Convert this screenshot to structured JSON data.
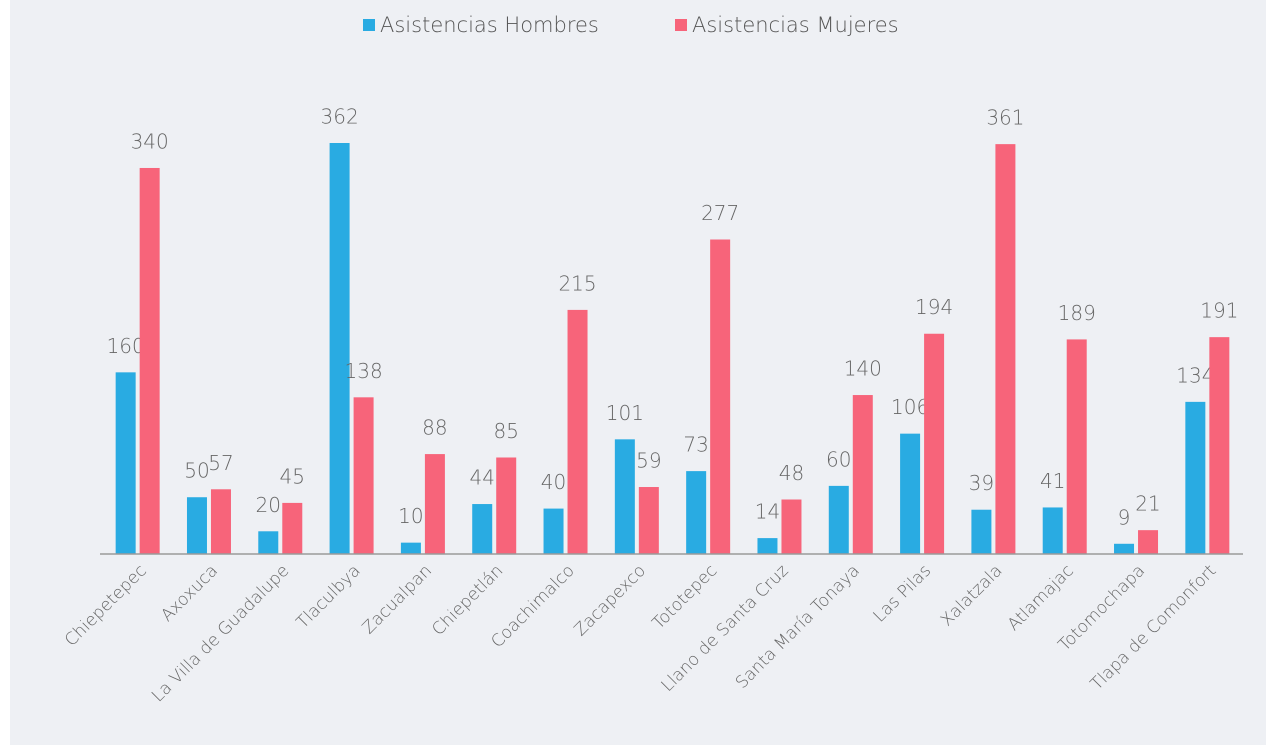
{
  "chart_data": {
    "type": "bar",
    "categories": [
      "Chiepetepec",
      "Axoxuca",
      "La Villa de Guadalupe",
      "Tlaculbya",
      "Zacualpan",
      "Chiepetlán",
      "Coachimalco",
      "Zacapexco",
      "Tototepec",
      "Llano de Santa Cruz",
      "Santa María Tonaya",
      "Las Pilas",
      "Xalatzala",
      "Atlamajac",
      "Totomochapa",
      "Tlapa de Comonfort"
    ],
    "series": [
      {
        "name": "Asistencias Hombres",
        "color": "#29abe2",
        "values": [
          160,
          50,
          20,
          362,
          10,
          44,
          40,
          101,
          73,
          14,
          60,
          106,
          39,
          41,
          9,
          134
        ]
      },
      {
        "name": "Asistencias Mujeres",
        "color": "#f7647a",
        "values": [
          340,
          57,
          45,
          138,
          88,
          85,
          215,
          59,
          277,
          48,
          140,
          194,
          361,
          189,
          21,
          191
        ]
      }
    ],
    "legend": "top"
  }
}
